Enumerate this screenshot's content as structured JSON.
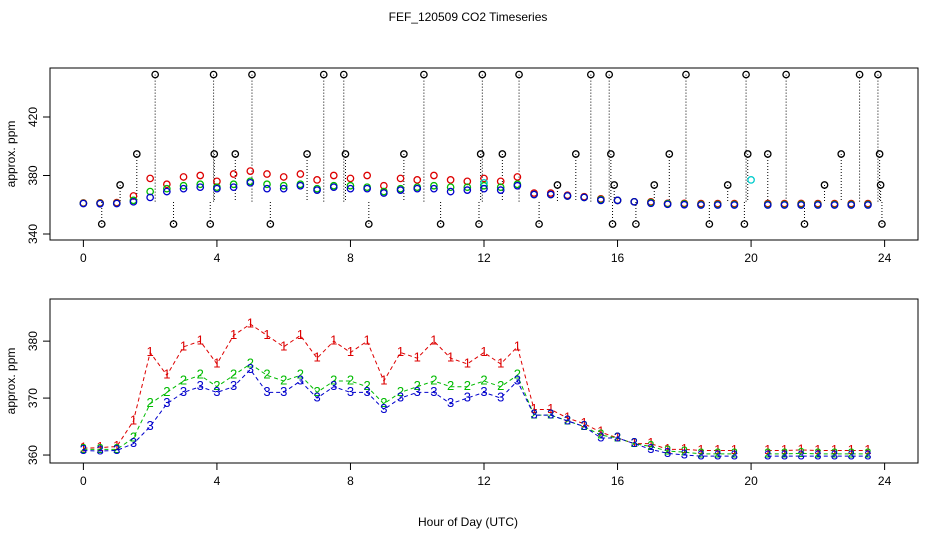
{
  "chart_data": [
    {
      "type": "scatter",
      "title": "FEF_120509  CO2 Timeseries",
      "ylabel": "approx. ppm",
      "xlim": [
        -1,
        25
      ],
      "ylim": [
        335.9,
        453.5
      ],
      "xticks": [
        0,
        4,
        8,
        12,
        16,
        20,
        24
      ],
      "yticks": [
        340,
        380,
        420
      ],
      "x": [
        0,
        0.5,
        1,
        1.5,
        2,
        2.5,
        3,
        3.5,
        4,
        4.5,
        5,
        5.5,
        6,
        6.5,
        7,
        7.5,
        8,
        8.5,
        9,
        9.5,
        10,
        10.5,
        11,
        11.5,
        12,
        12.5,
        13,
        13.5,
        14,
        14.5,
        15,
        15.5,
        16,
        16.5,
        17,
        17.5,
        18,
        18.5,
        19,
        19.5,
        20,
        20.5,
        21,
        21.5,
        22,
        22.5,
        23,
        23.5
      ],
      "series": [
        {
          "color": "#000000",
          "x": [
            0.55,
            1.1,
            1.6,
            2.15,
            2.7,
            3.8,
            3.9,
            3.92,
            4.55,
            5.05,
            5.6,
            6.7,
            7.2,
            7.8,
            7.85,
            8.55,
            9.6,
            10.2,
            10.7,
            11.85,
            11.9,
            11.95,
            12.55,
            13.05,
            13.65,
            14.2,
            14.75,
            15.2,
            15.75,
            15.8,
            15.85,
            15.9,
            16.55,
            17.1,
            17.55,
            18.05,
            18.75,
            19.3,
            19.8,
            19.85,
            19.9,
            20.5,
            21.05,
            21.6,
            22.2,
            22.7,
            23.25,
            23.8,
            23.85,
            23.88,
            23.92
          ],
          "values": [
            346.8,
            373.5,
            394.7,
            449,
            346.8,
            346.8,
            449,
            394.7,
            394.7,
            449,
            346.8,
            394.7,
            449,
            449,
            394.7,
            346.8,
            394.7,
            449,
            346.8,
            346.8,
            394.7,
            449,
            394.7,
            449,
            346.8,
            373.5,
            394.7,
            449,
            449,
            394.7,
            346.8,
            373.5,
            346.8,
            373.5,
            394.7,
            449,
            346.8,
            373.5,
            346.8,
            449,
            394.7,
            394.7,
            449,
            346.8,
            373.5,
            394.7,
            449,
            449,
            394.7,
            373.5,
            346.8
          ]
        },
        {
          "color": "#dd0000",
          "values": [
            361.2,
            361.3,
            361.5,
            366,
            378,
            374,
            379,
            380,
            376,
            381,
            383,
            381,
            379,
            381,
            377,
            380,
            378,
            380,
            373,
            378,
            377,
            380,
            377,
            376,
            378,
            376,
            379,
            368,
            368,
            366.5,
            365.5,
            364,
            363,
            362,
            362,
            361,
            361,
            360.8,
            360.8,
            360.8,
            null,
            360.8,
            360.8,
            360.9,
            360.8,
            360.8,
            360.8,
            360.8
          ]
        },
        {
          "color": "#00bb00",
          "values": [
            361,
            361,
            361,
            363,
            369,
            371,
            373,
            374,
            372,
            374,
            376,
            374,
            373,
            374,
            371,
            373,
            373,
            372,
            369,
            371,
            372,
            373,
            372,
            372,
            373,
            372,
            374,
            367,
            367,
            366,
            365,
            363.5,
            363,
            362,
            361.5,
            360.7,
            360.5,
            360.2,
            360.2,
            360.2,
            null,
            360.2,
            360.2,
            360.3,
            360.2,
            360.2,
            360.2,
            360.2
          ]
        },
        {
          "color": "#00cccc",
          "values": [
            null,
            null,
            null,
            null,
            null,
            null,
            null,
            null,
            null,
            null,
            null,
            null,
            null,
            null,
            null,
            null,
            null,
            null,
            null,
            null,
            null,
            null,
            null,
            null,
            375,
            null,
            null,
            null,
            null,
            null,
            null,
            null,
            null,
            null,
            null,
            null,
            null,
            null,
            null,
            null,
            377,
            null,
            null,
            null,
            null,
            null,
            null,
            null
          ]
        },
        {
          "color": "#0000cc",
          "values": [
            360.8,
            360.7,
            360.8,
            362,
            365,
            369,
            371,
            372,
            371,
            372,
            375,
            371,
            371,
            373,
            370,
            372,
            371,
            371,
            368,
            370,
            371,
            371,
            369,
            370,
            371,
            370,
            373,
            367,
            367,
            366,
            365,
            363,
            363,
            362,
            361,
            360.3,
            360,
            359.8,
            359.8,
            359.8,
            null,
            359.8,
            359.8,
            359.8,
            359.8,
            359.8,
            359.8,
            359.8
          ]
        }
      ]
    },
    {
      "type": "line",
      "ylabel": "approx. ppm",
      "xlabel": "Hour of Day (UTC)",
      "xlim": [
        -1,
        25
      ],
      "ylim": [
        358.6,
        387.4
      ],
      "xticks": [
        0,
        4,
        8,
        12,
        16,
        20,
        24
      ],
      "yticks": [
        360,
        370,
        380
      ],
      "x": [
        0,
        0.5,
        1,
        1.5,
        2,
        2.5,
        3,
        3.5,
        4,
        4.5,
        5,
        5.5,
        6,
        6.5,
        7,
        7.5,
        8,
        8.5,
        9,
        9.5,
        10,
        10.5,
        11,
        11.5,
        12,
        12.5,
        13,
        13.5,
        14,
        14.5,
        15,
        15.5,
        16,
        16.5,
        17,
        17.5,
        18,
        18.5,
        19,
        19.5,
        20,
        20.5,
        21,
        21.5,
        22,
        22.5,
        23,
        23.5
      ],
      "series": [
        {
          "name": "1",
          "color": "#dd0000",
          "values": [
            361.2,
            361.3,
            361.5,
            366,
            378,
            374,
            379,
            380,
            376,
            381,
            383,
            381,
            379,
            381,
            377,
            380,
            378,
            380,
            373,
            378,
            377,
            380,
            377,
            376,
            378,
            376,
            379,
            368,
            368,
            366.5,
            365.5,
            364,
            363,
            362,
            362,
            361,
            361,
            360.8,
            360.8,
            360.8,
            null,
            360.8,
            360.8,
            360.9,
            360.8,
            360.8,
            360.8,
            360.8
          ]
        },
        {
          "name": "2",
          "color": "#00bb00",
          "values": [
            361,
            361,
            361,
            363,
            369,
            371,
            373,
            374,
            372,
            374,
            376,
            374,
            373,
            374,
            371,
            373,
            373,
            372,
            369,
            371,
            372,
            373,
            372,
            372,
            373,
            372,
            374,
            367,
            367,
            366,
            365,
            363.5,
            363,
            362,
            361.5,
            360.7,
            360.5,
            360.2,
            360.2,
            360.2,
            null,
            360.2,
            360.2,
            360.3,
            360.2,
            360.2,
            360.2,
            360.2
          ]
        },
        {
          "name": "3",
          "color": "#0000cc",
          "values": [
            360.8,
            360.7,
            360.8,
            362,
            365,
            369,
            371,
            372,
            371,
            372,
            375,
            371,
            371,
            373,
            370,
            372,
            371,
            371,
            368,
            370,
            371,
            371,
            369,
            370,
            371,
            370,
            373,
            367,
            367,
            366,
            365,
            363,
            363,
            362,
            361,
            360.3,
            360,
            359.8,
            359.8,
            359.8,
            null,
            359.8,
            359.8,
            359.8,
            359.8,
            359.8,
            359.8,
            359.8
          ]
        }
      ]
    }
  ]
}
